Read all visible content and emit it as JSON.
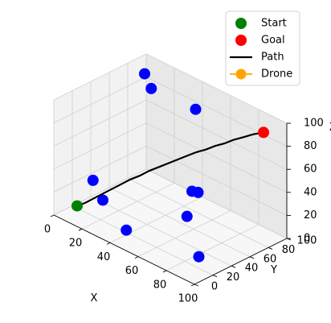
{
  "chart_data": {
    "type": "scatter",
    "projection": "3d",
    "xlabel": "X",
    "ylabel": "Y",
    "zlabel": "Z",
    "xlim": [
      0,
      100
    ],
    "ylim": [
      0,
      100
    ],
    "zlim": [
      0,
      100
    ],
    "xticks": [
      0,
      20,
      40,
      60,
      80,
      100
    ],
    "yticks": [
      0,
      20,
      40,
      60,
      80,
      100
    ],
    "zticks": [
      0,
      20,
      40,
      60,
      80,
      100
    ],
    "grid": true,
    "legend_position": "top-right",
    "legend": [
      {
        "label": "Start",
        "marker": "circle",
        "color": "#008000"
      },
      {
        "label": "Goal",
        "marker": "circle",
        "color": "#ff0000"
      },
      {
        "label": "Path",
        "marker": "line",
        "color": "#000000"
      },
      {
        "label": "Drone",
        "marker": "circle-line",
        "color": "#ffa500"
      }
    ],
    "start": {
      "x": 10,
      "y": 10,
      "z": 10
    },
    "goal": {
      "x": 90,
      "y": 90,
      "z": 90
    },
    "obstacles": [
      {
        "x": 12,
        "y": 80,
        "z": 98
      },
      {
        "x": 20,
        "y": 75,
        "z": 92
      },
      {
        "x": 45,
        "y": 85,
        "z": 85
      },
      {
        "x": 18,
        "y": 15,
        "z": 35
      },
      {
        "x": 25,
        "y": 15,
        "z": 22
      },
      {
        "x": 45,
        "y": 10,
        "z": 10
      },
      {
        "x": 72,
        "y": 40,
        "z": 48
      },
      {
        "x": 75,
        "y": 42,
        "z": 48
      },
      {
        "x": 75,
        "y": 30,
        "z": 32
      },
      {
        "x": 90,
        "y": 20,
        "z": 10
      }
    ],
    "path": [
      {
        "x": 10,
        "y": 10,
        "z": 10
      },
      {
        "x": 14,
        "y": 13,
        "z": 14
      },
      {
        "x": 18,
        "y": 16,
        "z": 19
      },
      {
        "x": 22,
        "y": 19,
        "z": 24
      },
      {
        "x": 26,
        "y": 23,
        "z": 29
      },
      {
        "x": 30,
        "y": 27,
        "z": 34
      },
      {
        "x": 34,
        "y": 31,
        "z": 39
      },
      {
        "x": 38,
        "y": 35,
        "z": 43
      },
      {
        "x": 42,
        "y": 39,
        "z": 48
      },
      {
        "x": 46,
        "y": 43,
        "z": 52
      },
      {
        "x": 50,
        "y": 48,
        "z": 56
      },
      {
        "x": 54,
        "y": 52,
        "z": 60
      },
      {
        "x": 58,
        "y": 56,
        "z": 64
      },
      {
        "x": 62,
        "y": 60,
        "z": 68
      },
      {
        "x": 66,
        "y": 64,
        "z": 71
      },
      {
        "x": 70,
        "y": 68,
        "z": 75
      },
      {
        "x": 74,
        "y": 72,
        "z": 78
      },
      {
        "x": 78,
        "y": 76,
        "z": 82
      },
      {
        "x": 82,
        "y": 80,
        "z": 85
      },
      {
        "x": 86,
        "y": 85,
        "z": 88
      },
      {
        "x": 90,
        "y": 90,
        "z": 90
      }
    ],
    "colors": {
      "obstacle": "#0000ff",
      "start": "#008000",
      "goal": "#ff0000",
      "path": "#000000",
      "drone": "#ffa500"
    }
  }
}
